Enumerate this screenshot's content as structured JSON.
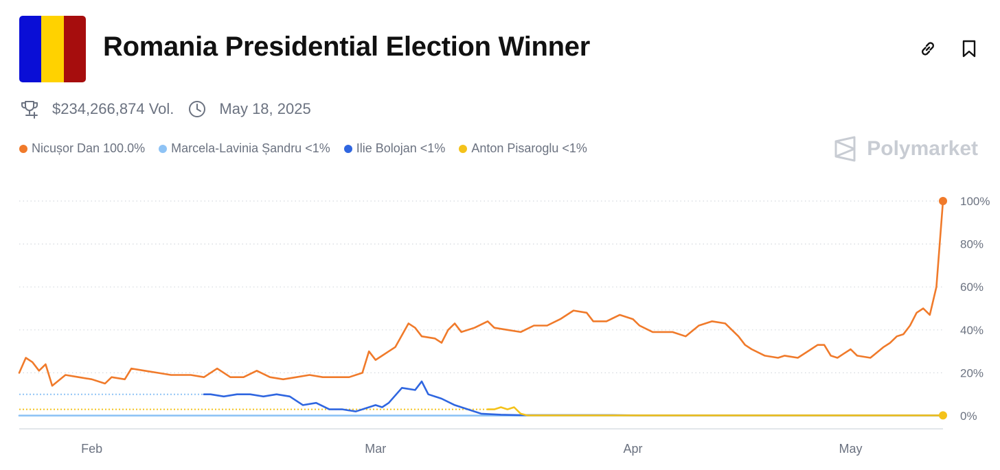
{
  "header": {
    "title": "Romania Presidential Election Winner",
    "flag_colors": [
      "#0A0ED6",
      "#FFD200",
      "#A60D0D"
    ],
    "icons": [
      "link-icon",
      "bookmark-icon"
    ]
  },
  "meta": {
    "volume": "$234,266,874 Vol.",
    "date": "May 18, 2025",
    "icons": [
      "trophy-icon",
      "clock-icon"
    ]
  },
  "legend": [
    {
      "label": "Nicușor Dan 100.0%",
      "color": "#F07A2A"
    },
    {
      "label": "Marcela-Lavinia Șandru <1%",
      "color": "#8EC3F5"
    },
    {
      "label": "Ilie Bolojan <1%",
      "color": "#2F66E0"
    },
    {
      "label": "Anton Pisaroglu <1%",
      "color": "#F4C21A"
    }
  ],
  "brand": {
    "name": "Polymarket",
    "icon": "polymarket-logo-icon"
  },
  "chart_data": {
    "type": "line",
    "x_ticks": [
      "Feb",
      "Mar",
      "Apr",
      "May"
    ],
    "y_ticks": [
      "0%",
      "20%",
      "40%",
      "60%",
      "80%",
      "100%"
    ],
    "ylim": [
      0,
      100
    ],
    "grid": "horizontal dotted",
    "legend_position": "top-left",
    "series": [
      {
        "name": "Nicușor Dan",
        "color": "#F07A2A",
        "points": [
          [
            "2025-01-15",
            20
          ],
          [
            "2025-01-16",
            27
          ],
          [
            "2025-01-17",
            25
          ],
          [
            "2025-01-18",
            21
          ],
          [
            "2025-01-19",
            24
          ],
          [
            "2025-01-20",
            14
          ],
          [
            "2025-01-22",
            19
          ],
          [
            "2025-01-24",
            18
          ],
          [
            "2025-01-26",
            17
          ],
          [
            "2025-01-28",
            15
          ],
          [
            "2025-01-29",
            18
          ],
          [
            "2025-01-31",
            17
          ],
          [
            "2025-02-01",
            22
          ],
          [
            "2025-02-03",
            21
          ],
          [
            "2025-02-05",
            20
          ],
          [
            "2025-02-07",
            19
          ],
          [
            "2025-02-10",
            19
          ],
          [
            "2025-02-12",
            18
          ],
          [
            "2025-02-14",
            22
          ],
          [
            "2025-02-16",
            18
          ],
          [
            "2025-02-18",
            18
          ],
          [
            "2025-02-20",
            21
          ],
          [
            "2025-02-22",
            18
          ],
          [
            "2025-02-24",
            17
          ],
          [
            "2025-02-26",
            18
          ],
          [
            "2025-02-28",
            19
          ],
          [
            "2025-03-02",
            18
          ],
          [
            "2025-03-04",
            18
          ],
          [
            "2025-03-06",
            18
          ],
          [
            "2025-03-08",
            20
          ],
          [
            "2025-03-09",
            30
          ],
          [
            "2025-03-10",
            26
          ],
          [
            "2025-03-11",
            28
          ],
          [
            "2025-03-12",
            30
          ],
          [
            "2025-03-13",
            32
          ],
          [
            "2025-03-15",
            43
          ],
          [
            "2025-03-16",
            41
          ],
          [
            "2025-03-17",
            37
          ],
          [
            "2025-03-19",
            36
          ],
          [
            "2025-03-20",
            34
          ],
          [
            "2025-03-21",
            40
          ],
          [
            "2025-03-22",
            43
          ],
          [
            "2025-03-23",
            39
          ],
          [
            "2025-03-25",
            41
          ],
          [
            "2025-03-27",
            44
          ],
          [
            "2025-03-28",
            41
          ],
          [
            "2025-03-30",
            40
          ],
          [
            "2025-04-01",
            39
          ],
          [
            "2025-04-03",
            42
          ],
          [
            "2025-04-05",
            42
          ],
          [
            "2025-04-07",
            45
          ],
          [
            "2025-04-09",
            49
          ],
          [
            "2025-04-11",
            48
          ],
          [
            "2025-04-12",
            44
          ],
          [
            "2025-04-14",
            44
          ],
          [
            "2025-04-16",
            47
          ],
          [
            "2025-04-18",
            45
          ],
          [
            "2025-04-19",
            42
          ],
          [
            "2025-04-21",
            39
          ],
          [
            "2025-04-24",
            39
          ],
          [
            "2025-04-26",
            37
          ],
          [
            "2025-04-28",
            42
          ],
          [
            "2025-04-30",
            44
          ],
          [
            "2025-05-02",
            43
          ],
          [
            "2025-05-04",
            37
          ],
          [
            "2025-05-05",
            33
          ],
          [
            "2025-05-06",
            31
          ],
          [
            "2025-05-08",
            28
          ],
          [
            "2025-05-10",
            27
          ],
          [
            "2025-05-11",
            28
          ],
          [
            "2025-05-13",
            27
          ],
          [
            "2025-05-15",
            31
          ],
          [
            "2025-05-16",
            33
          ],
          [
            "2025-05-17",
            33
          ],
          [
            "2025-05-18",
            28
          ],
          [
            "2025-05-19",
            27
          ],
          [
            "2025-05-20",
            29
          ],
          [
            "2025-05-21",
            31
          ],
          [
            "2025-05-22",
            28
          ],
          [
            "2025-05-24",
            27
          ],
          [
            "2025-05-26",
            32
          ],
          [
            "2025-05-27",
            34
          ],
          [
            "2025-05-28",
            37
          ],
          [
            "2025-05-29",
            38
          ],
          [
            "2025-05-30",
            42
          ],
          [
            "2025-05-31",
            48
          ],
          [
            "2025-06-01",
            50
          ],
          [
            "2025-06-02",
            47
          ],
          [
            "2025-06-03",
            60
          ],
          [
            "2025-06-04",
            100
          ]
        ]
      },
      {
        "name": "Ilie Bolojan",
        "color": "#2F66E0",
        "points": [
          [
            "2025-02-12",
            10
          ],
          [
            "2025-02-13",
            10
          ],
          [
            "2025-02-15",
            9
          ],
          [
            "2025-02-17",
            10
          ],
          [
            "2025-02-19",
            10
          ],
          [
            "2025-02-21",
            9
          ],
          [
            "2025-02-23",
            10
          ],
          [
            "2025-02-25",
            9
          ],
          [
            "2025-02-27",
            5
          ],
          [
            "2025-03-01",
            6
          ],
          [
            "2025-03-03",
            3
          ],
          [
            "2025-03-05",
            3
          ],
          [
            "2025-03-07",
            2
          ],
          [
            "2025-03-09",
            4
          ],
          [
            "2025-03-10",
            5
          ],
          [
            "2025-03-11",
            4
          ],
          [
            "2025-03-12",
            6
          ],
          [
            "2025-03-14",
            13
          ],
          [
            "2025-03-16",
            12
          ],
          [
            "2025-03-17",
            16
          ],
          [
            "2025-03-18",
            10
          ],
          [
            "2025-03-20",
            8
          ],
          [
            "2025-03-22",
            5
          ],
          [
            "2025-03-24",
            3
          ],
          [
            "2025-03-26",
            1
          ],
          [
            "2025-03-29",
            0.5
          ],
          [
            "2025-04-01",
            0.3
          ],
          [
            "2025-04-15",
            0.3
          ],
          [
            "2025-04-19",
            0.2
          ],
          [
            "2025-06-04",
            0.2
          ]
        ]
      },
      {
        "name": "Anton Pisaroglu",
        "color": "#F4C21A",
        "points": [
          [
            "2025-03-27",
            3
          ],
          [
            "2025-03-28",
            3
          ],
          [
            "2025-03-29",
            4
          ],
          [
            "2025-03-30",
            3
          ],
          [
            "2025-03-31",
            4
          ],
          [
            "2025-04-01",
            1
          ],
          [
            "2025-04-02",
            0.2
          ],
          [
            "2025-06-04",
            0.2
          ]
        ]
      },
      {
        "name": "Marcela-Lavinia Șandru",
        "color": "#8EC3F5",
        "points": [
          [
            "2025-01-15",
            0.1
          ],
          [
            "2025-06-04",
            0.1
          ]
        ]
      }
    ],
    "baseline_segments": [
      {
        "color": "#8EC3F5",
        "y": 10,
        "x": [
          "2025-01-15",
          "2025-02-12"
        ]
      },
      {
        "color": "#F4C21A",
        "y": 3,
        "x": [
          "2025-01-15",
          "2025-03-27"
        ]
      },
      {
        "color": "#C9D7F7",
        "y": 0,
        "x": [
          "2025-01-15",
          "2025-04-02"
        ]
      }
    ],
    "end_markers": [
      "Nicușor Dan",
      "Anton Pisaroglu"
    ]
  }
}
